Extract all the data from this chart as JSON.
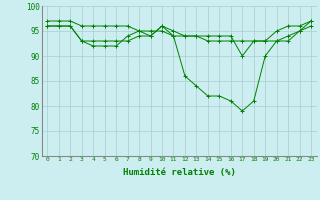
{
  "lines": [
    [
      96,
      96,
      96,
      93,
      92,
      92,
      92,
      94,
      95,
      94,
      96,
      94,
      86,
      84,
      82,
      82,
      81,
      79,
      81,
      90,
      93,
      94,
      95,
      96
    ],
    [
      96,
      96,
      96,
      93,
      93,
      93,
      93,
      93,
      94,
      94,
      96,
      95,
      94,
      94,
      94,
      94,
      94,
      90,
      93,
      93,
      95,
      96,
      96,
      97
    ],
    [
      97,
      97,
      97,
      96,
      96,
      96,
      96,
      96,
      95,
      95,
      95,
      94,
      94,
      94,
      93,
      93,
      93,
      93,
      93,
      93,
      93,
      93,
      95,
      97
    ]
  ],
  "x": [
    0,
    1,
    2,
    3,
    4,
    5,
    6,
    7,
    8,
    9,
    10,
    11,
    12,
    13,
    14,
    15,
    16,
    17,
    18,
    19,
    20,
    21,
    22,
    23
  ],
  "xlabel": "Humidité relative (%)",
  "ylim": [
    70,
    100
  ],
  "xlim": [
    -0.5,
    23.5
  ],
  "yticks": [
    70,
    75,
    80,
    85,
    90,
    95,
    100
  ],
  "xticks": [
    0,
    1,
    2,
    3,
    4,
    5,
    6,
    7,
    8,
    9,
    10,
    11,
    12,
    13,
    14,
    15,
    16,
    17,
    18,
    19,
    20,
    21,
    22,
    23
  ],
  "line_color": "#008000",
  "bg_color": "#cceef0",
  "grid_color": "#aaccd0",
  "marker": "+"
}
